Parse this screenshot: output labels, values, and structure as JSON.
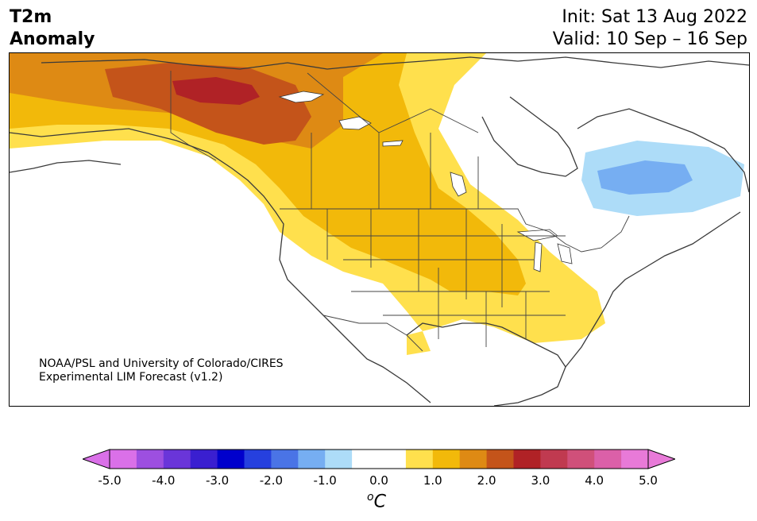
{
  "header": {
    "variable_line1": "T2m",
    "variable_line2": "Anomaly",
    "init_text": "Init: Sat 13 Aug 2022",
    "valid_text": "Valid: 10 Sep – 16 Sep"
  },
  "map": {
    "region": "North America",
    "credit_line1": "NOAA/PSL and University of Colorado/CIRES",
    "credit_line2": "Experimental LIM Forecast (v1.2)"
  },
  "colorbar": {
    "tick_labels": [
      "-5.0",
      "-4.0",
      "-3.0",
      "-2.0",
      "-1.0",
      "0.0",
      "1.0",
      "2.0",
      "3.0",
      "4.0",
      "5.0"
    ],
    "units_main": "C",
    "units_sup": "o",
    "colors": [
      "#da70e8",
      "#9d4fe0",
      "#6a35d9",
      "#3a1fd0",
      "#0000cc",
      "#2640de",
      "#4a74e6",
      "#76aef2",
      "#addcf8",
      "#ffffff",
      "#ffffff",
      "#ffe04d",
      "#f2b90a",
      "#de8a14",
      "#c4541a",
      "#b02226",
      "#c03a50",
      "#d0507a",
      "#db60a8",
      "#e87ad8"
    ]
  }
}
